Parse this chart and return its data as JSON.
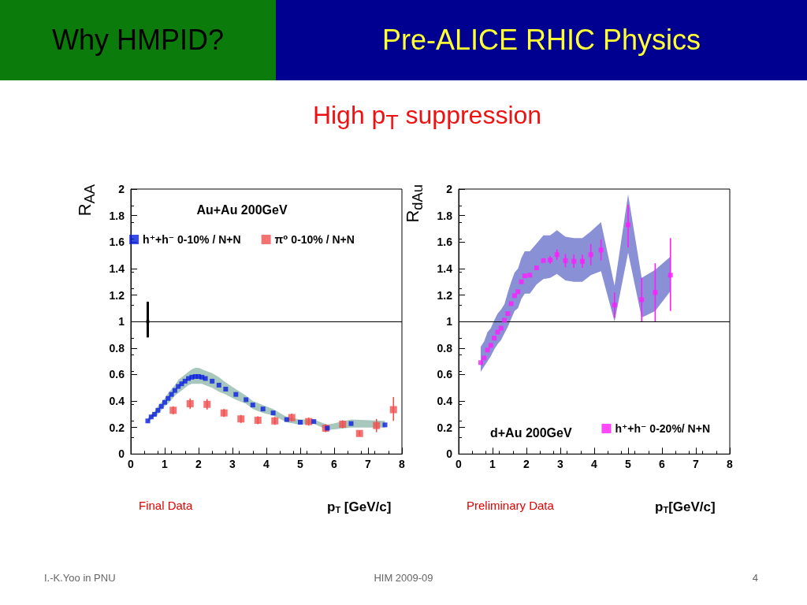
{
  "chart_data": [
    {
      "type": "other",
      "title": "Pre-ALICE RHIC Physics",
      "subtitle": "High p$_{T}$ suppression",
      "annotations": [
        "Why HMPID?",
        "I.-K.Yoo in PNU",
        "HIM 2009-09",
        "4"
      ]
    },
    {
      "type": "scatter",
      "xlabel": "p$_{T}$ [GeV/c]",
      "ylabel": "R$_{AA}$",
      "xlim": [
        0,
        8
      ],
      "xticks": [
        0,
        1,
        2,
        3,
        4,
        5,
        6,
        7,
        8
      ],
      "ylim": [
        0,
        2
      ],
      "yticks": [
        0,
        0.2,
        0.4,
        0.6,
        0.8,
        1,
        1.2,
        1.4,
        1.6,
        1.8,
        2
      ],
      "grid": false,
      "legend": "top",
      "marker": "square",
      "annotations": [
        "Au+Au 200GeV",
        "Final Data"
      ],
      "ref_lines": [
        {
          "axis": "y",
          "value": 1,
          "color": "#000000"
        }
      ],
      "series": [
        {
          "name": "h⁺+h⁻ 0-10% / N+N",
          "color": "#0a1ee0",
          "x": [
            0.5,
            0.6,
            0.7,
            0.8,
            0.9,
            1.0,
            1.1,
            1.2,
            1.3,
            1.4,
            1.5,
            1.6,
            1.7,
            1.8,
            1.9,
            2.0,
            2.1,
            2.2,
            2.4,
            2.6,
            2.8,
            3.1,
            3.4,
            3.6,
            3.9,
            4.2,
            4.6,
            5.0,
            5.4,
            5.8,
            6.5,
            7.5
          ],
          "values": [
            0.25,
            0.28,
            0.3,
            0.33,
            0.36,
            0.39,
            0.42,
            0.45,
            0.48,
            0.51,
            0.53,
            0.55,
            0.57,
            0.58,
            0.585,
            0.585,
            0.58,
            0.57,
            0.55,
            0.52,
            0.49,
            0.45,
            0.41,
            0.37,
            0.34,
            0.31,
            0.26,
            0.24,
            0.245,
            0.195,
            0.23,
            0.22
          ],
          "lower": [
            0.23,
            0.26,
            0.28,
            0.3,
            0.33,
            0.36,
            0.38,
            0.41,
            0.44,
            0.46,
            0.48,
            0.5,
            0.52,
            0.53,
            0.53,
            0.53,
            0.53,
            0.52,
            0.5,
            0.47,
            0.45,
            0.41,
            0.38,
            0.34,
            0.31,
            0.29,
            0.24,
            0.22,
            0.23,
            0.18,
            0.2,
            0.2
          ],
          "upper": [
            0.27,
            0.3,
            0.32,
            0.36,
            0.39,
            0.42,
            0.46,
            0.49,
            0.52,
            0.56,
            0.58,
            0.6,
            0.62,
            0.64,
            0.65,
            0.65,
            0.64,
            0.63,
            0.61,
            0.58,
            0.54,
            0.49,
            0.44,
            0.4,
            0.37,
            0.34,
            0.28,
            0.26,
            0.26,
            0.22,
            0.26,
            0.25
          ]
        },
        {
          "name": "π⁰ 0-10% / N+N",
          "color": "#f05050",
          "x": [
            1.25,
            1.75,
            2.25,
            2.75,
            3.25,
            3.75,
            4.25,
            4.75,
            5.25,
            5.75,
            6.25,
            6.75,
            7.25,
            7.75
          ],
          "values": [
            0.33,
            0.38,
            0.375,
            0.31,
            0.265,
            0.255,
            0.25,
            0.275,
            0.245,
            0.195,
            0.225,
            0.155,
            0.215,
            0.335
          ],
          "errors": [
            0.03,
            0.04,
            0.04,
            0.03,
            0.03,
            0.03,
            0.03,
            0.03,
            0.03,
            0.03,
            0.03,
            0.02,
            0.05,
            [
              0.25,
              0.43
            ]
          ]
        },
        {
          "color": "#000000",
          "x": [
            0.5
          ],
          "values": [
            1
          ],
          "errors": [
            [
              0.88,
              1.15
            ]
          ]
        }
      ]
    },
    {
      "type": "scatter",
      "xlabel": "p$_{T}$[GeV/c]",
      "ylabel": "R$_{dAu}$",
      "xlim": [
        0,
        8
      ],
      "xticks": [
        0,
        1,
        2,
        3,
        4,
        5,
        6,
        7,
        8
      ],
      "ylim": [
        0,
        2
      ],
      "yticks": [
        0,
        0.2,
        0.4,
        0.6,
        0.8,
        1,
        1.2,
        1.4,
        1.6,
        1.8,
        2
      ],
      "grid": false,
      "legend": "bottom right",
      "marker": "square",
      "annotations": [
        "d+Au 200GeV",
        "Preliminary Data"
      ],
      "ref_lines": [
        {
          "axis": "y",
          "value": 1,
          "color": "#000000"
        }
      ],
      "series": [
        {
          "name": "h⁺+h⁻ 0-20%/ N+N",
          "color": "#ff1aff",
          "x": [
            0.65,
            0.75,
            0.85,
            0.95,
            1.05,
            1.15,
            1.25,
            1.35,
            1.45,
            1.55,
            1.65,
            1.75,
            1.85,
            1.95,
            2.1,
            2.3,
            2.5,
            2.7,
            2.9,
            3.15,
            3.4,
            3.65,
            3.9,
            4.2,
            4.6,
            5.0,
            5.4,
            5.8,
            6.25
          ],
          "values": [
            0.69,
            0.725,
            0.785,
            0.82,
            0.875,
            0.92,
            0.95,
            1.01,
            1.06,
            1.135,
            1.195,
            1.225,
            1.3,
            1.345,
            1.35,
            1.405,
            1.46,
            1.465,
            1.505,
            1.46,
            1.455,
            1.455,
            1.505,
            1.54,
            1.125,
            1.73,
            1.165,
            1.22,
            1.35
          ],
          "errors": [
            null,
            null,
            null,
            null,
            null,
            null,
            null,
            null,
            null,
            null,
            null,
            null,
            null,
            null,
            null,
            null,
            null,
            0.03,
            0.04,
            0.05,
            0.05,
            0.05,
            0.08,
            0.08,
            [
              1.03,
              1.22
            ],
            [
              1.56,
              1.88
            ],
            [
              1.0,
              1.33
            ],
            [
              1.0,
              1.44
            ],
            [
              1.08,
              1.63
            ]
          ],
          "lower": [
            0.62,
            0.66,
            0.7,
            0.74,
            0.79,
            0.83,
            0.86,
            0.91,
            0.96,
            1.02,
            1.08,
            1.1,
            1.17,
            1.21,
            1.21,
            1.28,
            1.32,
            1.33,
            1.36,
            1.31,
            1.3,
            1.3,
            1.35,
            1.38,
            1.0,
            1.52,
            1.03,
            1.08,
            1.23
          ],
          "upper": [
            0.81,
            0.85,
            0.92,
            0.95,
            1.01,
            1.06,
            1.09,
            1.13,
            1.22,
            1.3,
            1.37,
            1.4,
            1.48,
            1.53,
            1.53,
            1.59,
            1.65,
            1.65,
            1.69,
            1.64,
            1.63,
            1.63,
            1.68,
            1.75,
            1.27,
            1.96,
            1.33,
            1.39,
            1.49
          ]
        }
      ]
    }
  ]
}
